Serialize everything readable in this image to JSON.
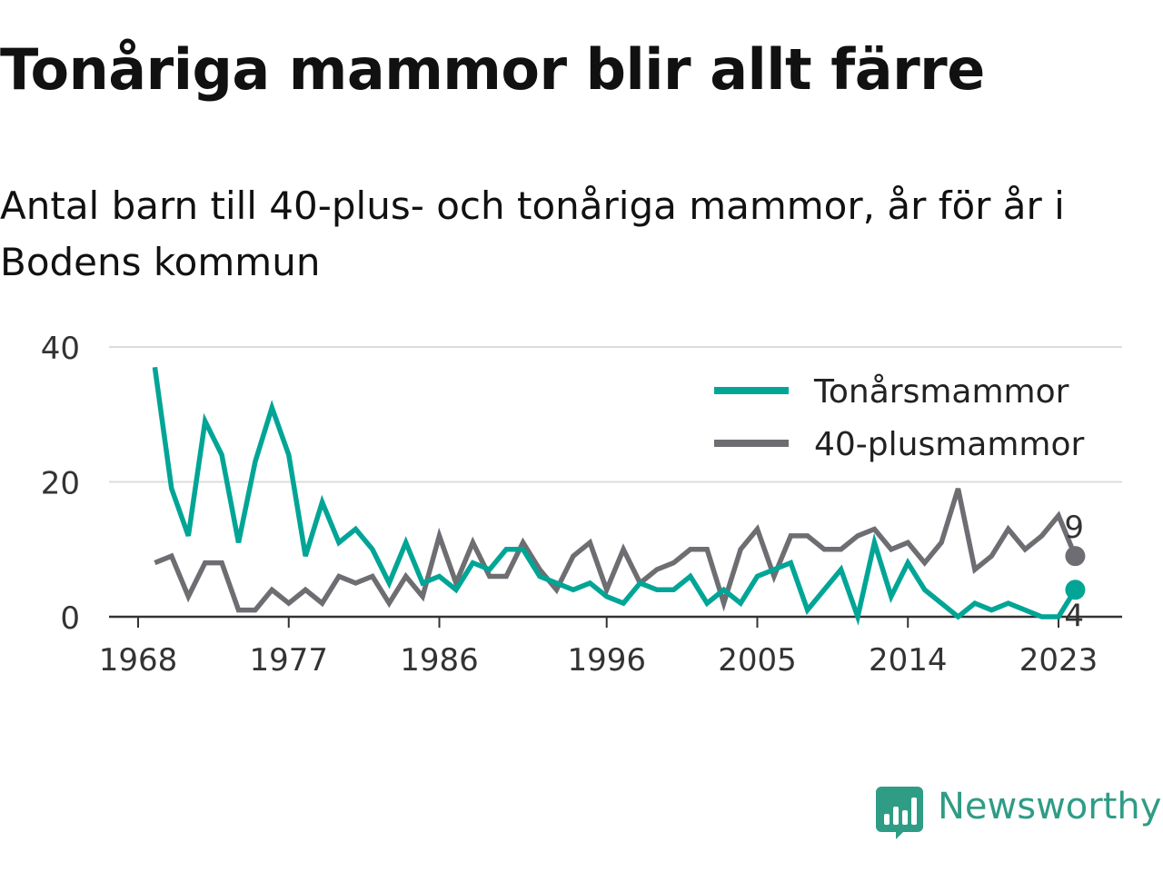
{
  "title": "Tonåriga mammor blir allt färre",
  "subtitle": "Antal barn till 40-plus- och tonåriga mammor, år för år i Bodens kommun",
  "brand": {
    "name": "Newsworthy",
    "color": "#2f9c85",
    "icon": "bar-chart-speech-bubble-icon"
  },
  "chart_data": {
    "type": "line",
    "title": "Tonåriga mammor blir allt färre",
    "xlabel": "",
    "ylabel": "",
    "xlim": [
      1967,
      2025
    ],
    "ylim": [
      0,
      40
    ],
    "x_ticks": [
      1968,
      1977,
      1986,
      1996,
      2005,
      2014,
      2023
    ],
    "y_ticks": [
      0,
      20,
      40
    ],
    "grid": true,
    "legend_position": "top-right",
    "x": [
      1969,
      1970,
      1971,
      1972,
      1973,
      1974,
      1975,
      1976,
      1977,
      1978,
      1979,
      1980,
      1981,
      1982,
      1983,
      1984,
      1985,
      1986,
      1987,
      1988,
      1989,
      1990,
      1991,
      1992,
      1993,
      1994,
      1995,
      1996,
      1997,
      1998,
      1999,
      2000,
      2001,
      2002,
      2003,
      2004,
      2005,
      2006,
      2007,
      2008,
      2009,
      2010,
      2011,
      2012,
      2013,
      2014,
      2015,
      2016,
      2017,
      2018,
      2019,
      2020,
      2021,
      2022,
      2023,
      2024
    ],
    "series": [
      {
        "name": "Tonårsmammor",
        "color": "#00a596",
        "values": [
          37,
          19,
          12,
          29,
          24,
          11,
          23,
          31,
          24,
          9,
          17,
          11,
          13,
          10,
          5,
          11,
          5,
          6,
          4,
          8,
          7,
          10,
          10,
          6,
          5,
          4,
          5,
          3,
          2,
          5,
          4,
          4,
          6,
          2,
          4,
          2,
          6,
          7,
          8,
          1,
          4,
          7,
          0,
          11,
          3,
          8,
          4,
          2,
          0,
          2,
          1,
          2,
          1,
          0,
          0,
          4
        ],
        "end_label": "4"
      },
      {
        "name": "40-plusmammor",
        "color": "#6e6d72",
        "values": [
          8,
          9,
          3,
          8,
          8,
          1,
          1,
          4,
          2,
          4,
          2,
          6,
          5,
          6,
          2,
          6,
          3,
          12,
          5,
          11,
          6,
          6,
          11,
          7,
          4,
          9,
          11,
          4,
          10,
          5,
          7,
          8,
          10,
          10,
          2,
          10,
          13,
          6,
          12,
          12,
          10,
          10,
          12,
          13,
          10,
          11,
          8,
          11,
          19,
          7,
          9,
          13,
          10,
          12,
          15,
          9
        ],
        "end_label": "9"
      }
    ]
  }
}
